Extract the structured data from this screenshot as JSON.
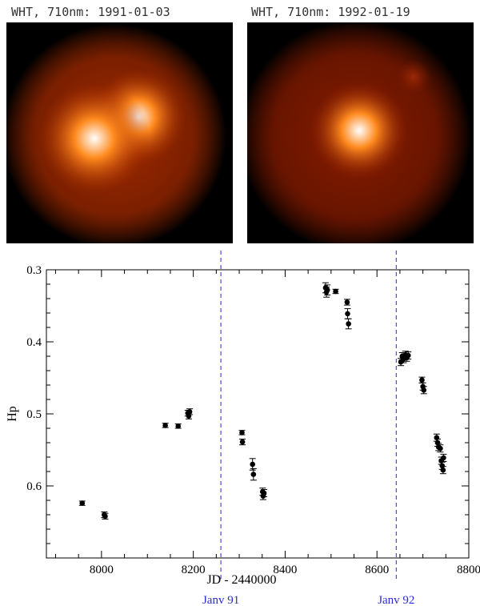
{
  "images": [
    {
      "title": "WHT, 710nm: 1991-01-03",
      "colors": {
        "halo": "#a32a00",
        "core": "#ffffff",
        "mid": "#ff8a1e",
        "bg": "#000000"
      }
    },
    {
      "title": "WHT, 710nm: 1992-01-19",
      "colors": {
        "halo": "#8a1c00",
        "core": "#ffffff",
        "mid": "#ff8a1e",
        "bg": "#000000"
      }
    }
  ],
  "chart_data": {
    "type": "scatter",
    "xlabel": "JD - 2440000",
    "ylabel": "Hp",
    "xlim": [
      7880,
      8800
    ],
    "ylim": [
      0.3,
      0.7
    ],
    "y_inverted": true,
    "xticks": [
      8000,
      8200,
      8400,
      8600,
      8800
    ],
    "yticks": [
      0.3,
      0.4,
      0.5,
      0.6
    ],
    "vlines": [
      {
        "x": 8260,
        "label": "Janv 91",
        "color": "#2a2ad6"
      },
      {
        "x": 8642,
        "label": "Janv 92",
        "color": "#2a2ad6"
      }
    ],
    "points": [
      {
        "x": 7958,
        "y": 0.624,
        "err": 0.003
      },
      {
        "x": 8006,
        "y": 0.64,
        "err": 0.004
      },
      {
        "x": 8008,
        "y": 0.642,
        "err": 0.004
      },
      {
        "x": 8139,
        "y": 0.516,
        "err": 0.003
      },
      {
        "x": 8167,
        "y": 0.517,
        "err": 0.003
      },
      {
        "x": 8188,
        "y": 0.499,
        "err": 0.004
      },
      {
        "x": 8190,
        "y": 0.503,
        "err": 0.004
      },
      {
        "x": 8192,
        "y": 0.497,
        "err": 0.004
      },
      {
        "x": 8306,
        "y": 0.526,
        "err": 0.003
      },
      {
        "x": 8307,
        "y": 0.539,
        "err": 0.004
      },
      {
        "x": 8329,
        "y": 0.57,
        "err": 0.008
      },
      {
        "x": 8331,
        "y": 0.584,
        "err": 0.008
      },
      {
        "x": 8351,
        "y": 0.608,
        "err": 0.005
      },
      {
        "x": 8352,
        "y": 0.614,
        "err": 0.005
      },
      {
        "x": 8354,
        "y": 0.61,
        "err": 0.005
      },
      {
        "x": 8488,
        "y": 0.325,
        "err": 0.007
      },
      {
        "x": 8490,
        "y": 0.331,
        "err": 0.007
      },
      {
        "x": 8492,
        "y": 0.328,
        "err": 0.007
      },
      {
        "x": 8510,
        "y": 0.33,
        "err": 0.003
      },
      {
        "x": 8535,
        "y": 0.345,
        "err": 0.004
      },
      {
        "x": 8536,
        "y": 0.361,
        "err": 0.007
      },
      {
        "x": 8538,
        "y": 0.375,
        "err": 0.007
      },
      {
        "x": 8652,
        "y": 0.428,
        "err": 0.005
      },
      {
        "x": 8655,
        "y": 0.42,
        "err": 0.005
      },
      {
        "x": 8658,
        "y": 0.424,
        "err": 0.005
      },
      {
        "x": 8662,
        "y": 0.418,
        "err": 0.005
      },
      {
        "x": 8665,
        "y": 0.422,
        "err": 0.005
      },
      {
        "x": 8668,
        "y": 0.419,
        "err": 0.005
      },
      {
        "x": 8698,
        "y": 0.453,
        "err": 0.004
      },
      {
        "x": 8700,
        "y": 0.462,
        "err": 0.005
      },
      {
        "x": 8702,
        "y": 0.467,
        "err": 0.005
      },
      {
        "x": 8730,
        "y": 0.533,
        "err": 0.005
      },
      {
        "x": 8732,
        "y": 0.54,
        "err": 0.005
      },
      {
        "x": 8734,
        "y": 0.546,
        "err": 0.005
      },
      {
        "x": 8738,
        "y": 0.548,
        "err": 0.005
      },
      {
        "x": 8740,
        "y": 0.565,
        "err": 0.005
      },
      {
        "x": 8742,
        "y": 0.572,
        "err": 0.005
      },
      {
        "x": 8744,
        "y": 0.578,
        "err": 0.005
      },
      {
        "x": 8745,
        "y": 0.561,
        "err": 0.005
      }
    ]
  }
}
